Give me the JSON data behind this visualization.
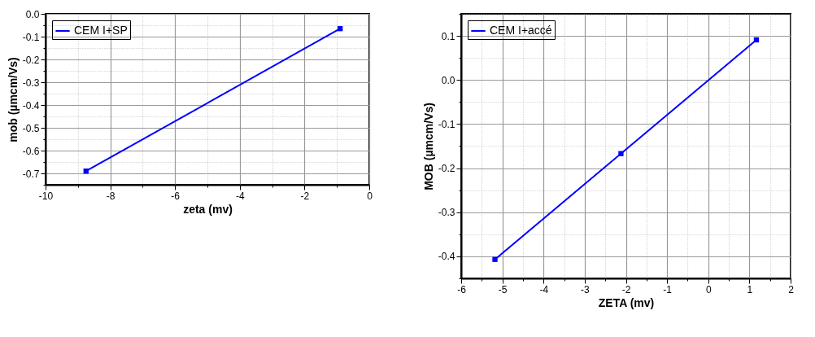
{
  "chart_data": [
    {
      "type": "line",
      "xlabel": "zeta (mv)",
      "ylabel": "mob (µmcm/Vs)",
      "x": [
        -8.75,
        -0.9
      ],
      "series": [
        {
          "name": "CEM I+SP",
          "color": "#0000ff",
          "values": [
            -0.69,
            -0.065
          ]
        }
      ],
      "xlim": [
        -10,
        0
      ],
      "xticks": [
        -10,
        {
          "value": -9,
          "label": null
        },
        -8,
        {
          "value": -7,
          "label": null
        },
        -6,
        {
          "value": -5,
          "label": null
        },
        -4,
        {
          "value": -3,
          "label": null
        },
        -2,
        {
          "value": -1,
          "label": null
        },
        0
      ],
      "ylim": [
        -0.75,
        0
      ],
      "yticks": [
        {
          "value": -0.75,
          "label": null
        },
        -0.7,
        {
          "value": -0.65,
          "label": null
        },
        -0.6,
        {
          "value": -0.55,
          "label": null
        },
        -0.5,
        {
          "value": -0.45,
          "label": null
        },
        -0.4,
        {
          "value": -0.35,
          "label": null
        },
        -0.3,
        {
          "value": -0.25,
          "label": null
        },
        -0.2,
        {
          "value": -0.15,
          "label": null
        },
        -0.1,
        {
          "value": -0.05,
          "label": null
        },
        {
          "value": 0,
          "label": "0.0"
        }
      ],
      "grid": true,
      "legend": "top left",
      "marker": "square",
      "line_style": "solid"
    },
    {
      "type": "line",
      "xlabel": "ZETA (mv)",
      "ylabel": "MOB (µmcm/Vs)",
      "x": [
        -5.18,
        -2.12,
        1.17
      ],
      "series": [
        {
          "name": "CEM I+accé",
          "color": "#0000ff",
          "values": [
            -0.407,
            -0.167,
            0.091
          ]
        }
      ],
      "xlim": [
        -6,
        2
      ],
      "xticks": [
        -6,
        {
          "value": -5.5,
          "label": null
        },
        -5,
        {
          "value": -4.5,
          "label": null
        },
        -4,
        {
          "value": -3.5,
          "label": null
        },
        -3,
        {
          "value": -2.5,
          "label": null
        },
        -2,
        {
          "value": -1.5,
          "label": null
        },
        -1,
        {
          "value": -0.5,
          "label": null
        },
        0,
        {
          "value": 0.5,
          "label": null
        },
        1,
        {
          "value": 1.5,
          "label": null
        },
        2
      ],
      "ylim": [
        -0.45,
        0.15
      ],
      "yticks": [
        {
          "value": -0.45,
          "label": null
        },
        -0.4,
        {
          "value": -0.35,
          "label": null
        },
        -0.3,
        {
          "value": -0.25,
          "label": null
        },
        -0.2,
        {
          "value": -0.15,
          "label": null
        },
        -0.1,
        {
          "value": -0.05,
          "label": null
        },
        {
          "value": 0,
          "label": "0.0"
        },
        {
          "value": 0.05,
          "label": null
        },
        0.1,
        {
          "value": 0.15,
          "label": null
        }
      ],
      "grid": true,
      "legend": "top left",
      "marker": "square",
      "line_style": "solid"
    }
  ]
}
